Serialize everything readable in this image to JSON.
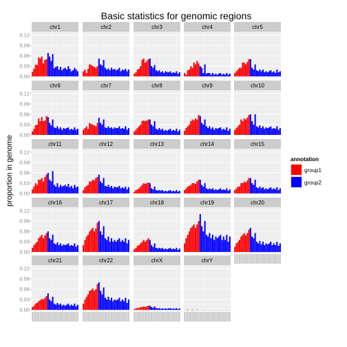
{
  "chart_data": {
    "type": "bar",
    "title": "Basic statistics for genomic regions",
    "ylabel": "proportion in genome",
    "xlabel": "",
    "ylim": [
      0,
      0.13
    ],
    "yticks": [
      "0.00",
      "0.03",
      "0.06",
      "0.09",
      "0.12"
    ],
    "ytick_values": [
      0,
      0.03,
      0.06,
      0.09,
      0.12
    ],
    "layout": {
      "ncol": 5,
      "nrow": 5
    },
    "legend": {
      "title": "annotation",
      "placement": "right",
      "entries": [
        {
          "name": "group1",
          "color": "#ff0000"
        },
        {
          "name": "group2",
          "color": "#0000ff"
        }
      ]
    },
    "colors": {
      "group1": "#ff0000",
      "group2": "#0000ff",
      "panel": "#ebebeb",
      "strip": "#cccccc"
    },
    "group1_count": 10,
    "group2_count": 20,
    "facets": [
      {
        "name": "chr1",
        "values": [
          0.013,
          0.022,
          0.034,
          0.033,
          0.055,
          0.052,
          0.058,
          0.038,
          0.048,
          0.05,
          0.068,
          0.058,
          0.045,
          0.065,
          0.024,
          0.028,
          0.03,
          0.02,
          0.028,
          0.018,
          0.023,
          0.025,
          0.02,
          0.03,
          0.022,
          0.015,
          0.018,
          0.025,
          0.02,
          0.015
        ]
      },
      {
        "name": "chr2",
        "values": [
          0.015,
          0.02,
          0.01,
          0.022,
          0.035,
          0.034,
          0.03,
          0.028,
          0.025,
          0.03,
          0.052,
          0.035,
          0.032,
          0.048,
          0.025,
          0.02,
          0.023,
          0.018,
          0.025,
          0.02,
          0.022,
          0.018,
          0.02,
          0.025,
          0.015,
          0.02,
          0.018,
          0.022,
          0.015,
          0.02
        ]
      },
      {
        "name": "chr3",
        "values": [
          0.008,
          0.012,
          0.02,
          0.022,
          0.03,
          0.048,
          0.052,
          0.04,
          0.045,
          0.05,
          0.052,
          0.03,
          0.025,
          0.033,
          0.018,
          0.015,
          0.018,
          0.012,
          0.015,
          0.01,
          0.015,
          0.013,
          0.012,
          0.015,
          0.01,
          0.012,
          0.01,
          0.015,
          0.008,
          0.012
        ]
      },
      {
        "name": "chr4",
        "values": [
          0.01,
          0.005,
          0.018,
          0.02,
          0.03,
          0.025,
          0.04,
          0.035,
          0.045,
          0.038,
          0.03,
          0.025,
          0.01,
          0.035,
          0.008,
          0.01,
          0.01,
          0.005,
          0.01,
          0.005,
          0.008,
          0.005,
          0.008,
          0.01,
          0.005,
          0.008,
          0.005,
          0.01,
          0.005,
          0.008
        ]
      },
      {
        "name": "chr5",
        "values": [
          0.01,
          0.015,
          0.02,
          0.025,
          0.025,
          0.04,
          0.04,
          0.035,
          0.042,
          0.05,
          0.05,
          0.025,
          0.02,
          0.035,
          0.018,
          0.015,
          0.02,
          0.015,
          0.02,
          0.012,
          0.015,
          0.012,
          0.015,
          0.018,
          0.012,
          0.015,
          0.01,
          0.02,
          0.012,
          0.015
        ]
      },
      {
        "name": "chr6",
        "values": [
          0.01,
          0.018,
          0.028,
          0.03,
          0.048,
          0.04,
          0.052,
          0.04,
          0.042,
          0.055,
          0.052,
          0.035,
          0.028,
          0.045,
          0.022,
          0.02,
          0.025,
          0.018,
          0.022,
          0.015,
          0.02,
          0.018,
          0.02,
          0.022,
          0.015,
          0.018,
          0.015,
          0.022,
          0.015,
          0.018
        ]
      },
      {
        "name": "chr7",
        "values": [
          0.015,
          0.02,
          0.025,
          0.018,
          0.035,
          0.032,
          0.03,
          0.028,
          0.025,
          0.035,
          0.05,
          0.035,
          0.03,
          0.045,
          0.022,
          0.02,
          0.025,
          0.02,
          0.022,
          0.018,
          0.022,
          0.02,
          0.02,
          0.025,
          0.018,
          0.02,
          0.018,
          0.025,
          0.015,
          0.02
        ]
      },
      {
        "name": "chr8",
        "values": [
          0.01,
          0.015,
          0.02,
          0.025,
          0.03,
          0.04,
          0.042,
          0.04,
          0.042,
          0.045,
          0.045,
          0.03,
          0.025,
          0.04,
          0.018,
          0.015,
          0.02,
          0.015,
          0.018,
          0.012,
          0.015,
          0.012,
          0.015,
          0.018,
          0.012,
          0.015,
          0.012,
          0.018,
          0.01,
          0.015
        ]
      },
      {
        "name": "chr9",
        "values": [
          0.012,
          0.02,
          0.025,
          0.03,
          0.04,
          0.045,
          0.042,
          0.048,
          0.045,
          0.058,
          0.055,
          0.035,
          0.03,
          0.045,
          0.025,
          0.02,
          0.025,
          0.018,
          0.022,
          0.015,
          0.02,
          0.018,
          0.02,
          0.022,
          0.015,
          0.018,
          0.015,
          0.022,
          0.012,
          0.018
        ]
      },
      {
        "name": "chr10",
        "values": [
          0.015,
          0.02,
          0.025,
          0.03,
          0.045,
          0.04,
          0.048,
          0.045,
          0.05,
          0.058,
          0.06,
          0.04,
          0.03,
          0.06,
          0.025,
          0.022,
          0.028,
          0.02,
          0.025,
          0.018,
          0.022,
          0.02,
          0.022,
          0.025,
          0.018,
          0.02,
          0.018,
          0.025,
          0.015,
          0.02
        ]
      },
      {
        "name": "chr11",
        "values": [
          0.012,
          0.02,
          0.03,
          0.025,
          0.04,
          0.04,
          0.045,
          0.035,
          0.048,
          0.055,
          0.06,
          0.04,
          0.035,
          0.065,
          0.025,
          0.02,
          0.03,
          0.018,
          0.025,
          0.02,
          0.022,
          0.025,
          0.02,
          0.028,
          0.018,
          0.022,
          0.015,
          0.025,
          0.018,
          0.02
        ]
      },
      {
        "name": "chr12",
        "values": [
          0.01,
          0.018,
          0.022,
          0.025,
          0.035,
          0.035,
          0.04,
          0.038,
          0.045,
          0.048,
          0.055,
          0.035,
          0.03,
          0.045,
          0.022,
          0.02,
          0.025,
          0.018,
          0.022,
          0.015,
          0.02,
          0.018,
          0.018,
          0.022,
          0.015,
          0.018,
          0.015,
          0.02,
          0.012,
          0.018
        ]
      },
      {
        "name": "chr13",
        "values": [
          0.005,
          0.01,
          0.012,
          0.015,
          0.02,
          0.025,
          0.03,
          0.028,
          0.03,
          0.032,
          0.03,
          0.015,
          0.012,
          0.02,
          0.01,
          0.008,
          0.01,
          0.008,
          0.01,
          0.006,
          0.008,
          0.006,
          0.008,
          0.01,
          0.006,
          0.008,
          0.006,
          0.01,
          0.005,
          0.008
        ]
      },
      {
        "name": "chr14",
        "values": [
          0.01,
          0.015,
          0.02,
          0.022,
          0.025,
          0.03,
          0.03,
          0.028,
          0.035,
          0.04,
          0.04,
          0.025,
          0.02,
          0.03,
          0.015,
          0.012,
          0.015,
          0.012,
          0.015,
          0.01,
          0.012,
          0.01,
          0.012,
          0.015,
          0.01,
          0.012,
          0.01,
          0.015,
          0.008,
          0.012
        ]
      },
      {
        "name": "chr15",
        "values": [
          0.01,
          0.015,
          0.02,
          0.02,
          0.03,
          0.03,
          0.035,
          0.032,
          0.038,
          0.045,
          0.045,
          0.03,
          0.025,
          0.04,
          0.018,
          0.015,
          0.02,
          0.015,
          0.018,
          0.012,
          0.015,
          0.012,
          0.015,
          0.018,
          0.012,
          0.015,
          0.012,
          0.018,
          0.01,
          0.015
        ]
      },
      {
        "name": "chr16",
        "values": [
          0.012,
          0.02,
          0.025,
          0.03,
          0.04,
          0.045,
          0.05,
          0.04,
          0.048,
          0.055,
          0.06,
          0.04,
          0.035,
          0.05,
          0.025,
          0.022,
          0.028,
          0.02,
          0.025,
          0.018,
          0.022,
          0.02,
          0.022,
          0.025,
          0.018,
          0.02,
          0.018,
          0.025,
          0.015,
          0.02
        ]
      },
      {
        "name": "chr17",
        "values": [
          0.02,
          0.035,
          0.045,
          0.05,
          0.06,
          0.065,
          0.07,
          0.06,
          0.068,
          0.085,
          0.09,
          0.06,
          0.05,
          0.075,
          0.04,
          0.035,
          0.045,
          0.03,
          0.04,
          0.03,
          0.035,
          0.03,
          0.035,
          0.04,
          0.03,
          0.035,
          0.03,
          0.04,
          0.025,
          0.035
        ]
      },
      {
        "name": "chr18",
        "values": [
          0.008,
          0.012,
          0.018,
          0.02,
          0.025,
          0.03,
          0.035,
          0.03,
          0.035,
          0.04,
          0.035,
          0.02,
          0.015,
          0.025,
          0.012,
          0.01,
          0.012,
          0.01,
          0.012,
          0.008,
          0.01,
          0.008,
          0.01,
          0.012,
          0.008,
          0.01,
          0.008,
          0.012,
          0.006,
          0.01
        ]
      },
      {
        "name": "chr19",
        "values": [
          0.025,
          0.04,
          0.05,
          0.06,
          0.07,
          0.075,
          0.08,
          0.07,
          0.08,
          0.09,
          0.11,
          0.075,
          0.06,
          0.09,
          0.05,
          0.045,
          0.055,
          0.04,
          0.05,
          0.035,
          0.045,
          0.04,
          0.045,
          0.05,
          0.035,
          0.045,
          0.035,
          0.05,
          0.03,
          0.045
        ]
      },
      {
        "name": "chr20",
        "values": [
          0.015,
          0.025,
          0.03,
          0.035,
          0.045,
          0.05,
          0.055,
          0.048,
          0.055,
          0.065,
          0.07,
          0.045,
          0.04,
          0.055,
          0.03,
          0.025,
          0.032,
          0.022,
          0.03,
          0.02,
          0.025,
          0.022,
          0.025,
          0.03,
          0.02,
          0.025,
          0.02,
          0.03,
          0.018,
          0.025
        ]
      },
      {
        "name": "chr21",
        "values": [
          0.008,
          0.012,
          0.018,
          0.02,
          0.025,
          0.028,
          0.032,
          0.03,
          0.035,
          0.04,
          0.048,
          0.03,
          0.025,
          0.038,
          0.018,
          0.015,
          0.02,
          0.015,
          0.018,
          0.012,
          0.015,
          0.012,
          0.015,
          0.018,
          0.012,
          0.015,
          0.012,
          0.018,
          0.01,
          0.015
        ]
      },
      {
        "name": "chr22",
        "values": [
          0.018,
          0.03,
          0.038,
          0.045,
          0.055,
          0.058,
          0.062,
          0.055,
          0.06,
          0.075,
          0.08,
          0.055,
          0.045,
          0.065,
          0.035,
          0.03,
          0.038,
          0.028,
          0.035,
          0.025,
          0.03,
          0.028,
          0.03,
          0.035,
          0.025,
          0.03,
          0.025,
          0.035,
          0.02,
          0.03
        ]
      },
      {
        "name": "chrX",
        "values": [
          0.002,
          0.004,
          0.006,
          0.005,
          0.008,
          0.008,
          0.01,
          0.008,
          0.01,
          0.012,
          0.012,
          0.008,
          0.006,
          0.01,
          0.005,
          0.004,
          0.005,
          0.003,
          0.004,
          0.003,
          0.004,
          0.003,
          0.004,
          0.005,
          0.003,
          0.004,
          0.003,
          0.005,
          0.002,
          0.004
        ]
      },
      {
        "name": "chrY",
        "values": [
          0.0,
          0.0,
          0.001,
          0.0,
          0.0,
          0.001,
          0.0,
          0.0,
          0.001,
          0.0,
          0.0,
          0.0,
          0.0,
          0.0,
          0.0,
          0.0,
          0.0,
          0.0,
          0.0,
          0.0,
          0.0,
          0.0,
          0.0,
          0.0,
          0.0,
          0.0,
          0.0,
          0.0,
          0.0,
          0.0
        ]
      }
    ]
  }
}
